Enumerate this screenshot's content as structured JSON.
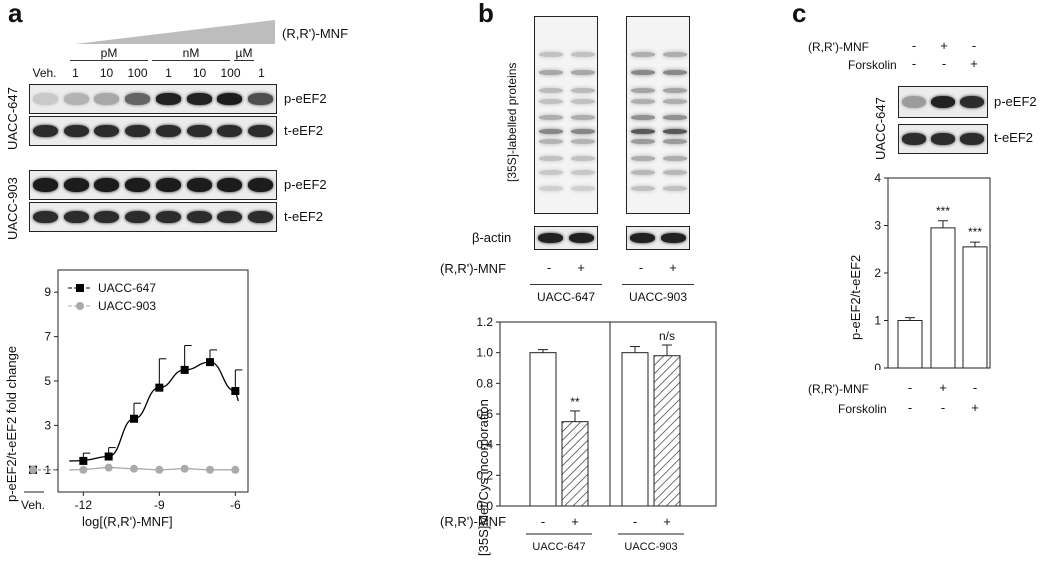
{
  "panels": {
    "a": {
      "label": "a",
      "treatment": "(R,R')-MNF",
      "unit_groups": [
        "pM",
        "nM",
        "µM"
      ],
      "lanes": [
        "Veh.",
        "1",
        "10",
        "100",
        "1",
        "10",
        "100",
        "1"
      ],
      "cell_lines": [
        "UACC-647",
        "UACC-903"
      ],
      "blot_labels": [
        "p-eEF2",
        "t-eEF2",
        "p-eEF2",
        "t-eEF2"
      ],
      "band_intensity_647_p": [
        0.15,
        0.25,
        0.3,
        0.6,
        0.9,
        0.9,
        0.92,
        0.7
      ],
      "band_intensity_647_t": [
        0.85,
        0.85,
        0.85,
        0.85,
        0.85,
        0.85,
        0.85,
        0.85
      ],
      "band_intensity_903_p": [
        0.92,
        0.92,
        0.92,
        0.92,
        0.92,
        0.92,
        0.92,
        0.92
      ],
      "band_intensity_903_t": [
        0.85,
        0.85,
        0.85,
        0.85,
        0.85,
        0.85,
        0.85,
        0.85
      ]
    },
    "b": {
      "label": "b",
      "gel_label": "[35S]-labelled proteins",
      "loading_label": "β-actin",
      "treatment": "(R,R')-MNF",
      "signs": [
        "-",
        "+",
        "-",
        "+"
      ],
      "cell_lines": [
        "UACC-647",
        "UACC-903"
      ]
    },
    "c": {
      "label": "c",
      "rows": [
        {
          "name": "(R,R')-MNF",
          "signs": [
            "-",
            "+",
            "-"
          ]
        },
        {
          "name": "Forskolin",
          "signs": [
            "-",
            "-",
            "+"
          ]
        }
      ],
      "cell_line": "UACC-647",
      "blot_labels": [
        "p-eEF2",
        "t-eEF2"
      ],
      "band_intensity_p": [
        0.35,
        0.9,
        0.85
      ],
      "band_intensity_t": [
        0.85,
        0.85,
        0.85
      ]
    }
  },
  "chart_data": [
    {
      "type": "line",
      "panel": "a",
      "xlabel": "log[(R,R')-MNF]",
      "ylabel": "p-eEF2/t-eEF2 fold change",
      "x_ticks": [
        "Veh.",
        "-12",
        "-9",
        "-6"
      ],
      "y_ticks": [
        "1",
        "3",
        "5",
        "7",
        "9"
      ],
      "ylim": [
        0,
        10
      ],
      "series": [
        {
          "name": "UACC-647",
          "color": "#000000",
          "marker": "square",
          "x": [
            "Veh.",
            -12,
            -11,
            -10,
            -9,
            -8,
            -7,
            -6
          ],
          "y": [
            1,
            1.4,
            1.6,
            3.3,
            4.7,
            5.5,
            5.85,
            4.55
          ],
          "err": [
            0,
            0.35,
            0.4,
            0.7,
            1.3,
            1.1,
            0.55,
            0.95
          ]
        },
        {
          "name": "UACC-903",
          "color": "#aaaaaa",
          "marker": "circle",
          "x": [
            "Veh.",
            -12,
            -11,
            -10,
            -9,
            -8,
            -7,
            -6
          ],
          "y": [
            1,
            1,
            1.1,
            1.05,
            1,
            1.05,
            1,
            1
          ],
          "err": [
            0,
            0,
            0,
            0,
            0,
            0,
            0,
            0
          ]
        }
      ]
    },
    {
      "type": "bar",
      "panel": "b",
      "ylabel": "[35S]Met/Cys incorporation",
      "y_ticks": [
        "0.0",
        "0.2",
        "0.4",
        "0.6",
        "0.8",
        "1.0",
        "1.2"
      ],
      "ylim": [
        0,
        1.2
      ],
      "categories": [
        "-",
        "+",
        "-",
        "+"
      ],
      "groups": [
        "UACC-647",
        "UACC-903"
      ],
      "xlabel": "(R,R')-MNF",
      "values": [
        1.0,
        0.55,
        1.0,
        0.98
      ],
      "err": [
        0.02,
        0.07,
        0.04,
        0.07
      ],
      "hatched": [
        false,
        true,
        false,
        true
      ],
      "annotations": [
        "",
        "**",
        "",
        "n/s"
      ]
    },
    {
      "type": "bar",
      "panel": "c",
      "ylabel": "p-eEF2/t-eEF2",
      "y_ticks": [
        "0",
        "1",
        "2",
        "3",
        "4"
      ],
      "ylim": [
        0,
        4
      ],
      "categories": [
        "1",
        "2",
        "3"
      ],
      "row_labels": [
        "(R,R')-MNF",
        "Forskolin"
      ],
      "signs": [
        [
          "-",
          "+",
          "-"
        ],
        [
          "-",
          "-",
          "+"
        ]
      ],
      "values": [
        1.0,
        2.95,
        2.55
      ],
      "err": [
        0.06,
        0.15,
        0.1
      ],
      "annotations": [
        "",
        "***",
        "***"
      ]
    }
  ]
}
